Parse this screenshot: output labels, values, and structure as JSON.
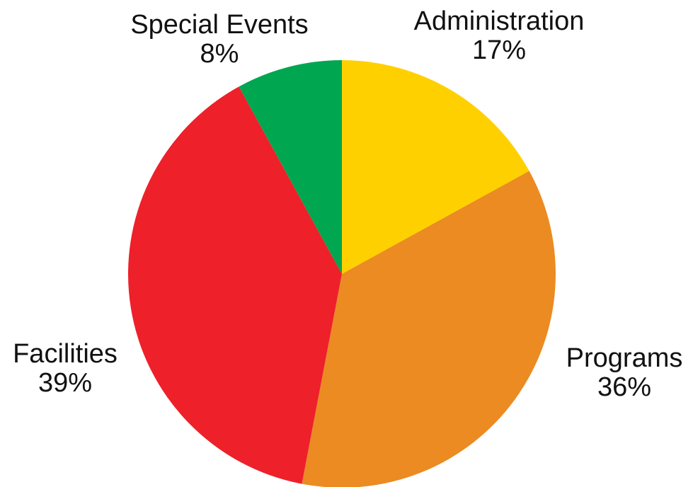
{
  "chart_data": {
    "type": "pie",
    "title": "",
    "start": "top, clockwise",
    "slices": [
      {
        "label": "Administration",
        "percent_text": "17%",
        "value": 17,
        "color": "#FFD000"
      },
      {
        "label": "Programs",
        "percent_text": "36%",
        "value": 36,
        "color": "#EB8B22"
      },
      {
        "label": "Facilities",
        "percent_text": "39%",
        "value": 39,
        "color": "#EE2029"
      },
      {
        "label": "Special Events",
        "percent_text": "8%",
        "value": 8,
        "color": "#00A650"
      }
    ]
  }
}
